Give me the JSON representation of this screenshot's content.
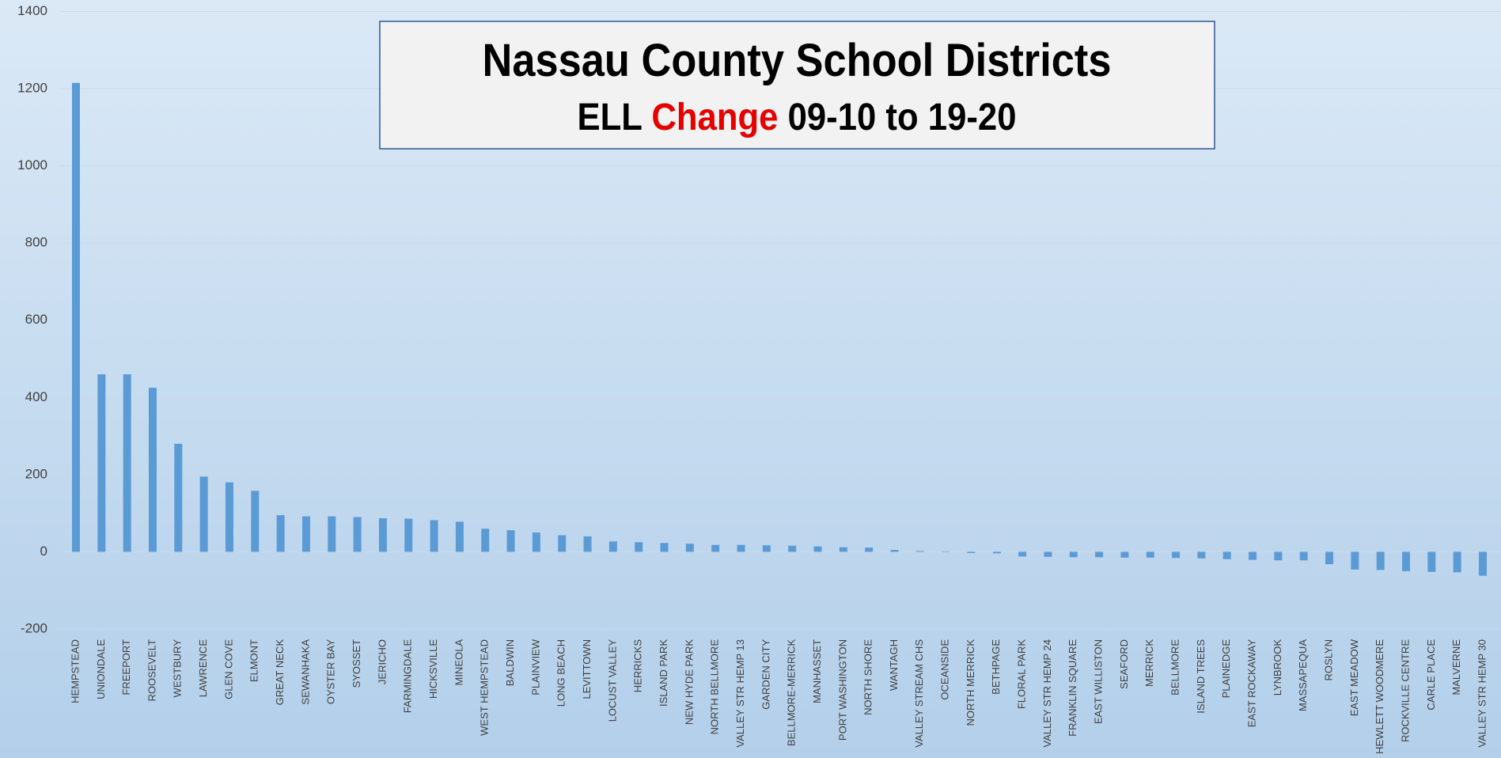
{
  "chart_data": {
    "type": "bar",
    "title": "Nassau County School Districts",
    "subtitle_parts": [
      "ELL",
      "Change",
      "09-10 to 19-20"
    ],
    "subtitle_colors": [
      "#000000",
      "#e60000",
      "#000000"
    ],
    "categories": [
      "HEMPSTEAD",
      "UNIONDALE",
      "FREEPORT",
      "ROOSEVELT",
      "WESTBURY",
      "LAWRENCE",
      "GLEN COVE",
      "ELMONT",
      "GREAT NECK",
      "SEWANHAKA",
      "OYSTER BAY",
      "SYOSSET",
      "JERICHO",
      "FARMINGDALE",
      "HICKSVILLE",
      "MINEOLA",
      "WEST HEMPSTEAD",
      "BALDWIN",
      "PLAINVIEW",
      "LONG BEACH",
      "LEVITTOWN",
      "LOCUST VALLEY",
      "HERRICKS",
      "ISLAND PARK",
      "NEW HYDE PARK",
      "NORTH BELLMORE",
      "VALLEY STR HEMP 13",
      "GARDEN CITY",
      "BELLMORE-MERRICK",
      "MANHASSET",
      "PORT WASHINGTON",
      "NORTH SHORE",
      "WANTAGH",
      "VALLEY STREAM CHS",
      "OCEANSIDE",
      "NORTH MERRICK",
      "BETHPAGE",
      "FLORAL PARK",
      "VALLEY STR HEMP 24",
      "FRANKLIN SQUARE",
      "EAST WILLISTON",
      "SEAFORD",
      "MERRICK",
      "BELLMORE",
      "ISLAND TREES",
      "PLAINEDGE",
      "EAST ROCKAWAY",
      "LYNBROOK",
      "MASSAPEQUA",
      "ROSLYN",
      "EAST MEADOW",
      "HEWLETT WOODMERE",
      "ROCKVILLE CENTRE",
      "CARLE PLACE",
      "MALVERNE",
      "VALLEY STR HEMP 30"
    ],
    "values": [
      1215,
      460,
      460,
      425,
      280,
      195,
      180,
      158,
      95,
      92,
      92,
      90,
      87,
      86,
      82,
      78,
      60,
      56,
      50,
      43,
      40,
      27,
      25,
      23,
      21,
      18,
      18,
      17,
      16,
      14,
      12,
      11,
      5,
      2,
      0,
      -3,
      -4,
      -12,
      -13,
      -14,
      -14,
      -15,
      -15,
      -16,
      -17,
      -19,
      -21,
      -22,
      -22,
      -32,
      -46,
      -47,
      -50,
      -52,
      -53,
      -62
    ],
    "color": "#5b9bd5",
    "ylim": [
      -200,
      1400
    ],
    "yticks": [
      -200,
      0,
      200,
      400,
      600,
      800,
      1000,
      1200,
      1400
    ],
    "grid": true
  }
}
